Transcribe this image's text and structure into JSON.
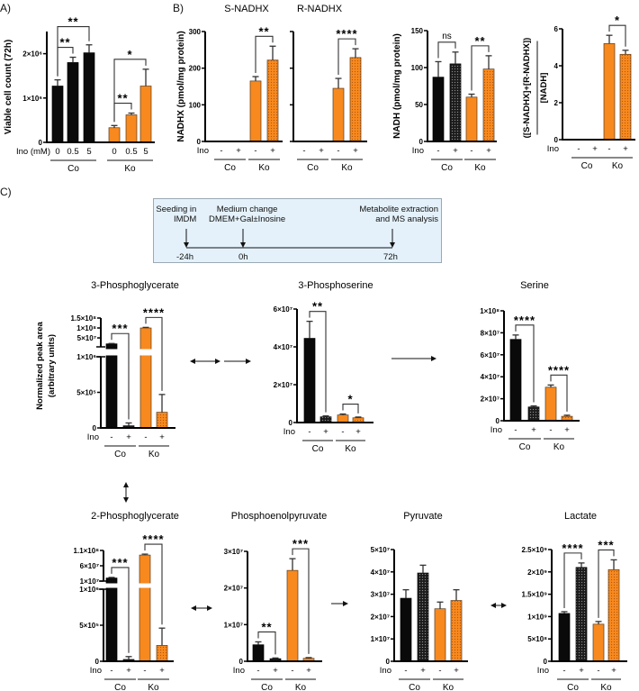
{
  "panel_labels": {
    "a": "A)",
    "b": "B)",
    "c": "C)"
  },
  "colors": {
    "control": "#0a0a0a",
    "knockout": "#f7891f",
    "control_dotted": "#1c1c1c",
    "knockout_dotted": "#f7891f",
    "timeline_bg": "#e4f1fa"
  },
  "timeline": {
    "seeding": [
      "Seeding in",
      "IMDM"
    ],
    "medium": [
      "Medium change",
      "DMEM+Gal±Inosine"
    ],
    "extraction": [
      "Metabolite extraction",
      "and MS analysis"
    ],
    "times": [
      "-24h",
      "0h",
      "72h"
    ]
  },
  "chart_data": [
    {
      "id": "viable",
      "type": "bar",
      "title": "",
      "ylabel": "Viable cell count (72h)",
      "xlabel": "Ino (mM)",
      "ylim": [
        0,
        2500000
      ],
      "yticks": [
        0,
        1000000,
        2000000
      ],
      "ytick_labels": [
        "0",
        "1×10⁶",
        "2×10⁶"
      ],
      "groups": [
        "Co",
        "Ko"
      ],
      "bars": [
        {
          "group": "Co",
          "ino": "0",
          "value": 1270000,
          "error": 140000,
          "dotted": false
        },
        {
          "group": "Co",
          "ino": "0.5",
          "value": 1800000,
          "error": 120000,
          "dotted": false
        },
        {
          "group": "Co",
          "ino": "5",
          "value": 2020000,
          "error": 180000,
          "dotted": false
        },
        {
          "group": "Ko",
          "ino": "0",
          "value": 330000,
          "error": 50000,
          "dotted": false
        },
        {
          "group": "Ko",
          "ino": "0.5",
          "value": 620000,
          "error": 40000,
          "dotted": false
        },
        {
          "group": "Ko",
          "ino": "5",
          "value": 1270000,
          "error": 380000,
          "dotted": false
        }
      ],
      "significance": [
        {
          "a": 0,
          "b": 1,
          "label": "**"
        },
        {
          "a": 0,
          "b": 2,
          "label": "**"
        },
        {
          "a": 3,
          "b": 4,
          "label": "**"
        },
        {
          "a": 3,
          "b": 5,
          "label": "*"
        }
      ]
    },
    {
      "id": "s_nadhx",
      "type": "bar",
      "title": "S-NADHX",
      "ylabel": "NADHX (pmol/mg protein)",
      "xlabel": "Ino",
      "ylim": [
        0,
        300
      ],
      "yticks": [
        0,
        100,
        200,
        300
      ],
      "ytick_labels": [
        "0",
        "100",
        "200",
        "300"
      ],
      "groups": [
        "Co",
        "Ko"
      ],
      "bars": [
        {
          "group": "Co",
          "ino": "-",
          "value": 0,
          "error": 0,
          "dotted": false
        },
        {
          "group": "Co",
          "ino": "+",
          "value": 0,
          "error": 0,
          "dotted": true
        },
        {
          "group": "Ko",
          "ino": "-",
          "value": 165,
          "error": 12,
          "dotted": false
        },
        {
          "group": "Ko",
          "ino": "+",
          "value": 222,
          "error": 38,
          "dotted": true
        }
      ],
      "significance": [
        {
          "a": 2,
          "b": 3,
          "label": "**"
        }
      ]
    },
    {
      "id": "r_nadhx",
      "type": "bar",
      "title": "R-NADHX",
      "ylabel": "",
      "xlabel": "",
      "ylim": [
        0,
        300
      ],
      "yticks": [
        0,
        100,
        200,
        300
      ],
      "ytick_labels": [],
      "groups": [
        "Co",
        "Ko"
      ],
      "bars": [
        {
          "group": "Co",
          "ino": "-",
          "value": 0,
          "error": 0,
          "dotted": false
        },
        {
          "group": "Co",
          "ino": "+",
          "value": 0,
          "error": 0,
          "dotted": true
        },
        {
          "group": "Ko",
          "ino": "-",
          "value": 145,
          "error": 27,
          "dotted": false
        },
        {
          "group": "Ko",
          "ino": "+",
          "value": 229,
          "error": 24,
          "dotted": true
        }
      ],
      "significance": [
        {
          "a": 2,
          "b": 3,
          "label": "****"
        }
      ]
    },
    {
      "id": "nadh",
      "type": "bar",
      "title": "",
      "ylabel": "NADH (pmol/mg protein)",
      "xlabel": "Ino",
      "ylim": [
        0,
        150
      ],
      "yticks": [
        0,
        50,
        100,
        150
      ],
      "ytick_labels": [
        "0",
        "50",
        "100",
        "150"
      ],
      "groups": [
        "Co",
        "Ko"
      ],
      "bars": [
        {
          "group": "Co",
          "ino": "-",
          "value": 87,
          "error": 21,
          "dotted": false
        },
        {
          "group": "Co",
          "ino": "+",
          "value": 105,
          "error": 16,
          "dotted": true
        },
        {
          "group": "Ko",
          "ino": "-",
          "value": 60,
          "error": 4,
          "dotted": false
        },
        {
          "group": "Ko",
          "ino": "+",
          "value": 98,
          "error": 18,
          "dotted": true
        }
      ],
      "significance": [
        {
          "a": 0,
          "b": 1,
          "label": "ns"
        },
        {
          "a": 2,
          "b": 3,
          "label": "**"
        }
      ]
    },
    {
      "id": "ratio",
      "type": "bar",
      "title": "",
      "ylabel_numerator": "([S-NADHX]+[R-NADHX])",
      "ylabel_denominator": "[NADH]",
      "xlabel": "Ino",
      "ylim": [
        0,
        6
      ],
      "yticks": [
        0,
        2,
        4,
        6
      ],
      "ytick_labels": [
        "0",
        "2",
        "4",
        "6"
      ],
      "groups": [
        "Co",
        "Ko"
      ],
      "bars": [
        {
          "group": "Co",
          "ino": "-",
          "value": 0,
          "error": 0,
          "dotted": false
        },
        {
          "group": "Co",
          "ino": "+",
          "value": 0,
          "error": 0,
          "dotted": true
        },
        {
          "group": "Ko",
          "ino": "-",
          "value": 5.2,
          "error": 0.45,
          "dotted": false
        },
        {
          "group": "Ko",
          "ino": "+",
          "value": 4.62,
          "error": 0.22,
          "dotted": true
        }
      ],
      "significance": [
        {
          "a": 2,
          "b": 3,
          "label": "*"
        }
      ]
    },
    {
      "id": "pg3",
      "type": "bar",
      "title": "3-Phosphoglycerate",
      "ylabel_lines": [
        "Normalized peak area",
        "(arbitrary units)"
      ],
      "xlabel": "Ino",
      "ylim": [
        0,
        150000000
      ],
      "y_segments": [
        [
          0,
          1000000
        ],
        [
          5000000,
          150000000
        ]
      ],
      "yticks": [
        0,
        500000,
        1000000,
        50000000,
        100000000,
        150000000
      ],
      "ytick_labels": [
        "0",
        "5×10⁵",
        "1×10⁶",
        "5×10⁷",
        "1×10⁸",
        "1.5×10⁸"
      ],
      "groups": [
        "Co",
        "Ko"
      ],
      "bars": [
        {
          "group": "Co",
          "ino": "-",
          "value": 20000000,
          "error": 2000000,
          "dotted": false
        },
        {
          "group": "Co",
          "ino": "+",
          "value": 30000,
          "error": 40000,
          "dotted": true
        },
        {
          "group": "Ko",
          "ino": "-",
          "value": 100000000,
          "error": 3000000,
          "dotted": false
        },
        {
          "group": "Ko",
          "ino": "+",
          "value": 220000,
          "error": 250000,
          "dotted": true
        }
      ],
      "significance": [
        {
          "a": 0,
          "b": 1,
          "label": "***"
        },
        {
          "a": 2,
          "b": 3,
          "label": "****"
        }
      ]
    },
    {
      "id": "ps3",
      "type": "bar",
      "title": "3-Phosphoserine",
      "xlabel": "Ino",
      "ylim": [
        0,
        60000000
      ],
      "yticks": [
        0,
        20000000,
        40000000,
        60000000
      ],
      "ytick_labels": [
        "0",
        "2×10⁷",
        "4×10⁷",
        "6×10⁷"
      ],
      "groups": [
        "Co",
        "Ko"
      ],
      "bars": [
        {
          "group": "Co",
          "ino": "-",
          "value": 44500000,
          "error": 9000000,
          "dotted": false
        },
        {
          "group": "Co",
          "ino": "+",
          "value": 3000000,
          "error": 500000,
          "dotted": true
        },
        {
          "group": "Ko",
          "ino": "-",
          "value": 4000000,
          "error": 500000,
          "dotted": false
        },
        {
          "group": "Ko",
          "ino": "+",
          "value": 2500000,
          "error": 400000,
          "dotted": true
        }
      ],
      "significance": [
        {
          "a": 0,
          "b": 1,
          "label": "**"
        },
        {
          "a": 2,
          "b": 3,
          "label": "*"
        }
      ]
    },
    {
      "id": "serine",
      "type": "bar",
      "title": "Serine",
      "xlabel": "Ino",
      "ylim": [
        0,
        100000000
      ],
      "yticks": [
        0,
        20000000,
        40000000,
        60000000,
        80000000,
        100000000
      ],
      "ytick_labels": [
        "0",
        "2×10⁷",
        "4×10⁷",
        "6×10⁷",
        "8×10⁷",
        "1×10⁸"
      ],
      "groups": [
        "Co",
        "Ko"
      ],
      "bars": [
        {
          "group": "Co",
          "ino": "-",
          "value": 74000000,
          "error": 4000000,
          "dotted": false
        },
        {
          "group": "Co",
          "ino": "+",
          "value": 12500000,
          "error": 1000000,
          "dotted": true
        },
        {
          "group": "Ko",
          "ino": "-",
          "value": 30500000,
          "error": 2000000,
          "dotted": false
        },
        {
          "group": "Ko",
          "ino": "+",
          "value": 4000000,
          "error": 1000000,
          "dotted": true
        }
      ],
      "significance": [
        {
          "a": 0,
          "b": 1,
          "label": "****"
        },
        {
          "a": 2,
          "b": 3,
          "label": "****"
        }
      ]
    },
    {
      "id": "pg2",
      "type": "bar",
      "title": "2-Phosphoglycerate",
      "xlabel": "Ino",
      "ylim": [
        0,
        110000000
      ],
      "y_segments": [
        [
          0,
          1000000
        ],
        [
          10000000,
          110000000
        ]
      ],
      "yticks": [
        0,
        500000,
        1000000,
        10000000,
        60000000,
        110000000
      ],
      "ytick_labels": [
        "0",
        "5×10⁵",
        "1×10⁶",
        "1×10⁷",
        "6×10⁷",
        "1.1×10⁸"
      ],
      "groups": [
        "Co",
        "Ko"
      ],
      "bars": [
        {
          "group": "Co",
          "ino": "-",
          "value": 20000000,
          "error": 2000000,
          "dotted": false
        },
        {
          "group": "Co",
          "ino": "+",
          "value": 25000,
          "error": 40000,
          "dotted": true
        },
        {
          "group": "Ko",
          "ino": "-",
          "value": 95000000,
          "error": 3000000,
          "dotted": false
        },
        {
          "group": "Ko",
          "ino": "+",
          "value": 220000,
          "error": 240000,
          "dotted": true
        }
      ],
      "significance": [
        {
          "a": 0,
          "b": 1,
          "label": "***"
        },
        {
          "a": 2,
          "b": 3,
          "label": "****"
        }
      ]
    },
    {
      "id": "pep",
      "type": "bar",
      "title": "Phosphoenolpyruvate",
      "xlabel": "Ino",
      "ylim": [
        0,
        30000000
      ],
      "yticks": [
        0,
        10000000,
        20000000,
        30000000
      ],
      "ytick_labels": [
        "0",
        "1×10⁷",
        "2×10⁷",
        "3×10⁷"
      ],
      "groups": [
        "Co",
        "Ko"
      ],
      "bars": [
        {
          "group": "Co",
          "ino": "-",
          "value": 4500000,
          "error": 800000,
          "dotted": false
        },
        {
          "group": "Co",
          "ino": "+",
          "value": 700000,
          "error": 200000,
          "dotted": true
        },
        {
          "group": "Ko",
          "ino": "-",
          "value": 24800000,
          "error": 3200000,
          "dotted": false
        },
        {
          "group": "Ko",
          "ino": "+",
          "value": 800000,
          "error": 200000,
          "dotted": true
        }
      ],
      "significance": [
        {
          "a": 0,
          "b": 1,
          "label": "**"
        },
        {
          "a": 2,
          "b": 3,
          "label": "***"
        }
      ]
    },
    {
      "id": "pyruvate",
      "type": "bar",
      "title": "Pyruvate",
      "xlabel": "Ino",
      "ylim": [
        0,
        50000000
      ],
      "yticks": [
        0,
        10000000,
        20000000,
        30000000,
        40000000,
        50000000
      ],
      "ytick_labels": [
        "0",
        "1×10⁷",
        "2×10⁷",
        "3×10⁷",
        "4×10⁷",
        "5×10⁷"
      ],
      "groups": [
        "Co",
        "Ko"
      ],
      "bars": [
        {
          "group": "Co",
          "ino": "-",
          "value": 28200000,
          "error": 3800000,
          "dotted": false
        },
        {
          "group": "Co",
          "ino": "+",
          "value": 39500000,
          "error": 3500000,
          "dotted": true
        },
        {
          "group": "Ko",
          "ino": "-",
          "value": 23500000,
          "error": 3000000,
          "dotted": false
        },
        {
          "group": "Ko",
          "ino": "+",
          "value": 27200000,
          "error": 4800000,
          "dotted": true
        }
      ],
      "significance": []
    },
    {
      "id": "lactate",
      "type": "bar",
      "title": "Lactate",
      "xlabel": "Ino",
      "ylim": [
        0,
        2500000000
      ],
      "yticks": [
        0,
        500000000,
        1000000000,
        1500000000,
        2000000000,
        2500000000
      ],
      "ytick_labels": [
        "0",
        "5×10⁸",
        "1×10⁹",
        "1.5×10⁹",
        "2×10⁹",
        "2.5×10⁹"
      ],
      "groups": [
        "Co",
        "Ko"
      ],
      "bars": [
        {
          "group": "Co",
          "ino": "-",
          "value": 1070000000,
          "error": 40000000,
          "dotted": false
        },
        {
          "group": "Co",
          "ino": "+",
          "value": 2100000000,
          "error": 100000000,
          "dotted": true
        },
        {
          "group": "Ko",
          "ino": "-",
          "value": 830000000,
          "error": 60000000,
          "dotted": false
        },
        {
          "group": "Ko",
          "ino": "+",
          "value": 2050000000,
          "error": 220000000,
          "dotted": true
        }
      ],
      "significance": [
        {
          "a": 0,
          "b": 1,
          "label": "****"
        },
        {
          "a": 2,
          "b": 3,
          "label": "***"
        }
      ]
    }
  ]
}
